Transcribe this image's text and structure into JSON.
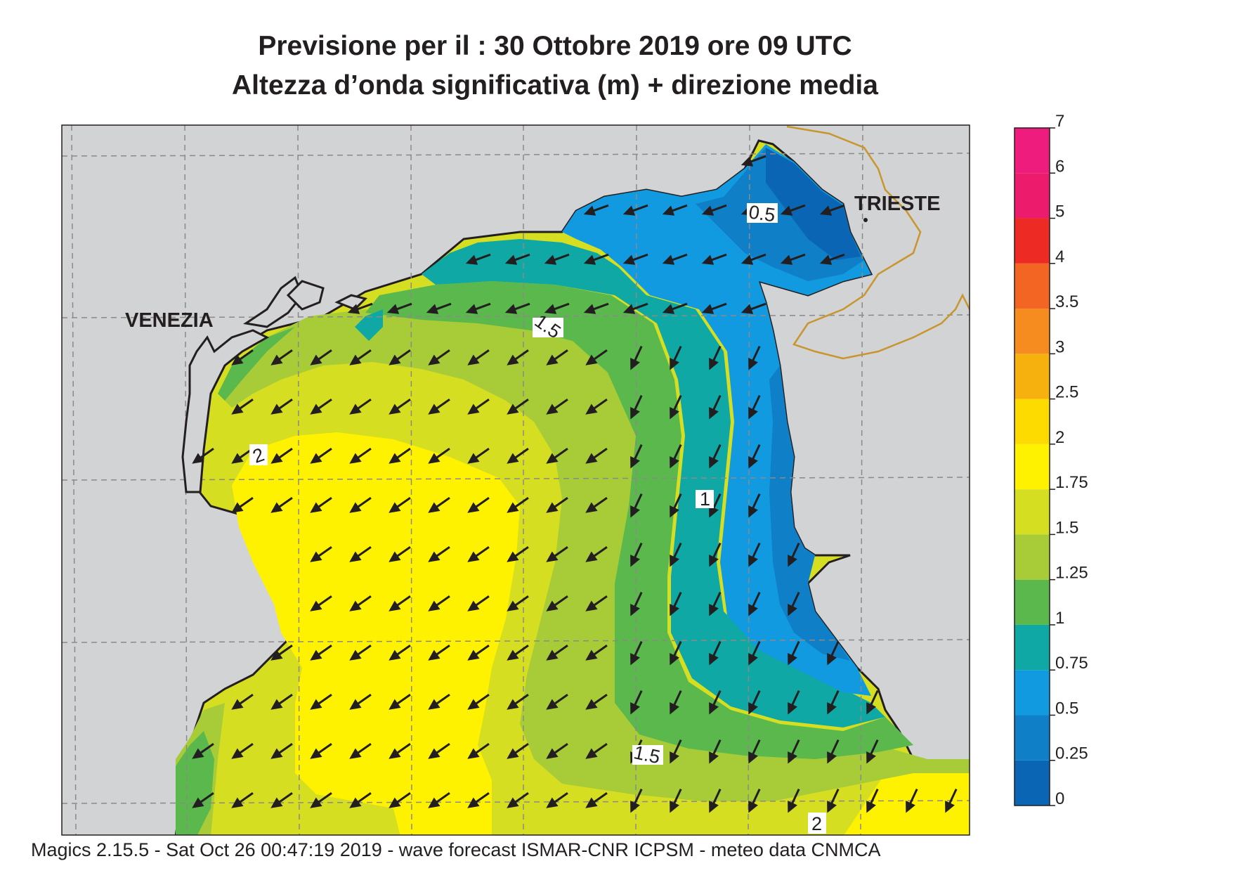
{
  "title": {
    "line1": "Previsione per il  :  30  Ottobre  2019   ore 09 UTC",
    "line2": "Altezza d’onda significativa (m) + direzione media"
  },
  "places": {
    "venezia": "VENEZIA",
    "trieste": "TRIESTE"
  },
  "colorbar": {
    "ticks": [
      "0",
      "0.25",
      "0.5",
      "0.75",
      "1",
      "1.25",
      "1.5",
      "1.75",
      "2",
      "2.5",
      "3",
      "3.5",
      "4",
      "5",
      "6",
      "7"
    ],
    "colors": [
      "#0a66b4",
      "#0f80c8",
      "#129ae0",
      "#0fa8a4",
      "#5ab84c",
      "#a8cc38",
      "#d6de22",
      "#fff200",
      "#fddb00",
      "#f6b10f",
      "#f68b1f",
      "#f26522",
      "#ee2a24",
      "#ec1b6b",
      "#ee1c7c"
    ]
  },
  "contour_labels": {
    "c05": "0.5",
    "c15_top": "1.5",
    "c1": "1",
    "c2_left": "2",
    "c15_bottom": "1.5",
    "c2_bottom": "2"
  },
  "footer": "Magics 2.15.5 - Sat Oct 26 00:47:19 2019 - wave forecast  ISMAR-CNR  ICPSM - meteo data   CNMCA"
}
